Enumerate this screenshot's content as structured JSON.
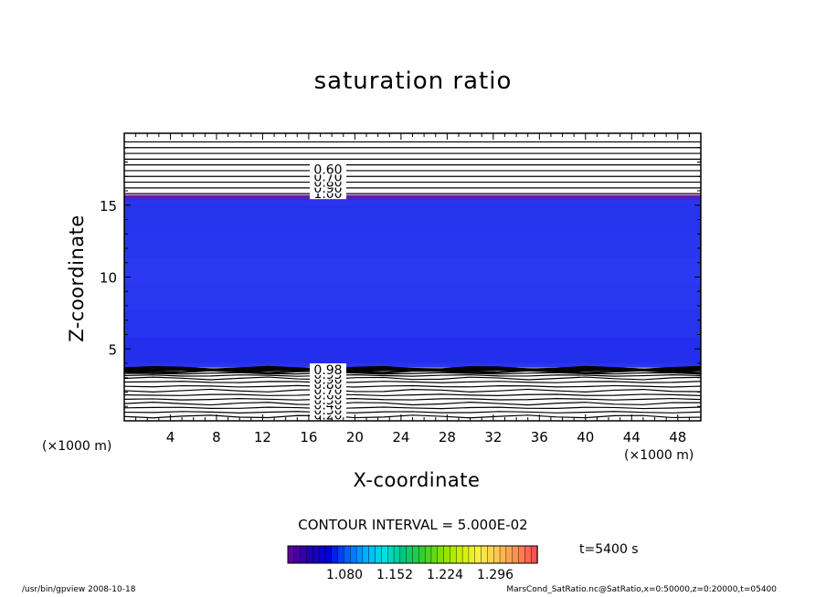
{
  "figure": {
    "title": "saturation ratio",
    "contour_interval": "CONTOUR INTERVAL = 5.000E-02",
    "time_label": "t=5400 s",
    "x_unit_left": "(×1000 m)",
    "x_unit_right": "(×1000 m)",
    "footer_left": "/usr/bin/gpview   2008-10-18",
    "footer_right": "MarsCond_SatRatio.nc@SatRatio,x=0:50000,z=0:20000,t=05400"
  },
  "colorbar": {
    "tick_labels": [
      "1.080",
      "1.152",
      "1.224",
      "1.296"
    ],
    "colors": [
      "#5a00a0",
      "#2000b0",
      "#0000d8",
      "#0060ff",
      "#00b0ff",
      "#00e0e0",
      "#00c880",
      "#30d030",
      "#80e000",
      "#c8f000",
      "#f8f040",
      "#ffc850",
      "#ff9050",
      "#ff5050"
    ]
  },
  "chart_data": {
    "type": "contour",
    "title": "saturation ratio",
    "xlabel": "X-coordinate",
    "ylabel": "Z-coordinate",
    "xlim": [
      0,
      50
    ],
    "ylim": [
      0,
      20
    ],
    "x_ticks": [
      4,
      8,
      12,
      16,
      20,
      24,
      28,
      32,
      36,
      40,
      44,
      48
    ],
    "y_ticks": [
      5,
      10,
      15
    ],
    "contour_interval": 0.05,
    "fill_band_z": [
      3.7,
      15.7
    ],
    "fill_colors": {
      "base": "#2a35f0",
      "top_edge": "#6a1aa8",
      "bands": [
        "#1f2bea",
        "#2433ee",
        "#2a38f2",
        "#2e3cf4",
        "#2a37f0",
        "#2633ec"
      ]
    },
    "upper_contours": {
      "z": [
        15.8,
        16.2,
        16.6,
        17.0,
        17.4,
        17.8,
        18.2,
        18.6,
        19.0,
        19.4
      ],
      "labels": [
        {
          "text": "1.00",
          "z": 15.8
        },
        {
          "text": "0.90",
          "z": 16.2
        },
        {
          "text": "0.80",
          "z": 16.6
        },
        {
          "text": "0.70",
          "z": 17.0
        },
        {
          "text": "0.60",
          "z": 17.5
        }
      ]
    },
    "lower_contours": {
      "z": [
        0.3,
        0.6,
        0.9,
        1.2,
        1.5,
        1.8,
        2.1,
        2.4,
        2.7,
        2.95,
        3.15,
        3.3,
        3.42,
        3.52,
        3.6,
        3.66
      ],
      "labels": [
        {
          "text": "0.20",
          "z": 0.4
        },
        {
          "text": "0.30",
          "z": 0.75
        },
        {
          "text": "0.40",
          "z": 1.1
        },
        {
          "text": "0.50",
          "z": 1.45
        },
        {
          "text": "0.60",
          "z": 1.8
        },
        {
          "text": "0.70",
          "z": 2.15
        },
        {
          "text": "0.80",
          "z": 2.55
        },
        {
          "text": "0.90",
          "z": 2.9
        },
        {
          "text": "0.95",
          "z": 3.25
        },
        {
          "text": "0.98",
          "z": 3.55
        }
      ]
    }
  }
}
